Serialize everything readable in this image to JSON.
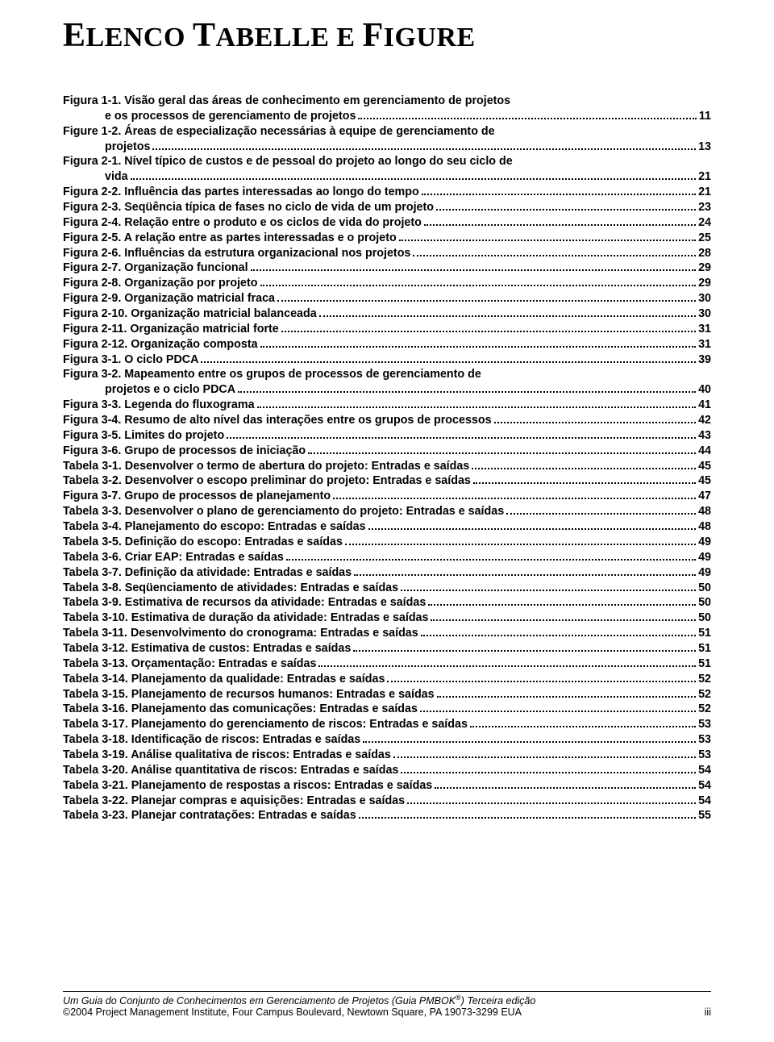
{
  "title_parts": {
    "e_cap": "E",
    "lenco": "LENCO ",
    "t_cap": "T",
    "abelle": "ABELLE E ",
    "f_cap": "F",
    "igure": "IGURE"
  },
  "entries": [
    {
      "label": "Figura 1-1. Visão geral das áreas de conhecimento em gerenciamento de projetos",
      "page": "",
      "hasLeader": false,
      "indent": false
    },
    {
      "label": "e os processos de gerenciamento de projetos",
      "page": "11",
      "hasLeader": true,
      "indent": true
    },
    {
      "label": "Figure 1-2. Áreas de especialização necessárias à equipe de gerenciamento de",
      "page": "",
      "hasLeader": false,
      "indent": false
    },
    {
      "label": "projetos",
      "page": "13",
      "hasLeader": true,
      "indent": true
    },
    {
      "label": "Figura 2-1. Nível típico de custos e de pessoal do projeto ao longo do seu ciclo de",
      "page": "",
      "hasLeader": false,
      "indent": false
    },
    {
      "label": "vida",
      "page": "21",
      "hasLeader": true,
      "indent": true
    },
    {
      "label": "Figura 2-2. Influência das partes interessadas ao longo do tempo",
      "page": "21",
      "hasLeader": true,
      "indent": false
    },
    {
      "label": "Figura 2-3. Seqüência típica de fases no ciclo de vida de um projeto",
      "page": "23",
      "hasLeader": true,
      "indent": false
    },
    {
      "label": "Figura 2-4. Relação entre o produto e os ciclos de vida do projeto",
      "page": "24",
      "hasLeader": true,
      "indent": false
    },
    {
      "label": "Figura 2-5. A relação entre as partes interessadas e o projeto",
      "page": "25",
      "hasLeader": true,
      "indent": false
    },
    {
      "label": "Figura 2-6. Influências da estrutura organizacional nos projetos",
      "page": "28",
      "hasLeader": true,
      "indent": false
    },
    {
      "label": "Figura 2-7. Organização funcional",
      "page": "29",
      "hasLeader": true,
      "indent": false
    },
    {
      "label": "Figura 2-8. Organização por projeto",
      "page": "29",
      "hasLeader": true,
      "indent": false
    },
    {
      "label": "Figura 2-9. Organização matricial fraca",
      "page": "30",
      "hasLeader": true,
      "indent": false
    },
    {
      "label": "Figura 2-10. Organização matricial balanceada",
      "page": "30",
      "hasLeader": true,
      "indent": false
    },
    {
      "label": "Figura 2-11. Organização matricial forte",
      "page": "31",
      "hasLeader": true,
      "indent": false
    },
    {
      "label": "Figura 2-12. Organização composta",
      "page": "31",
      "hasLeader": true,
      "indent": false
    },
    {
      "label": "Figura 3-1. O ciclo PDCA",
      "page": "39",
      "hasLeader": true,
      "indent": false
    },
    {
      "label": "Figura 3-2. Mapeamento entre os grupos de processos de gerenciamento de",
      "page": "",
      "hasLeader": false,
      "indent": false
    },
    {
      "label": "projetos e o ciclo PDCA",
      "page": "40",
      "hasLeader": true,
      "indent": true
    },
    {
      "label": "Figura 3-3. Legenda do fluxograma",
      "page": "41",
      "hasLeader": true,
      "indent": false
    },
    {
      "label": "Figura 3-4. Resumo de alto nível das interações entre os grupos de processos",
      "page": "42",
      "hasLeader": true,
      "indent": false
    },
    {
      "label": "Figura 3-5. Limites do projeto",
      "page": "43",
      "hasLeader": true,
      "indent": false
    },
    {
      "label": "Figura 3-6. Grupo de processos de iniciação",
      "page": "44",
      "hasLeader": true,
      "indent": false
    },
    {
      "label": "Tabela 3-1. Desenvolver o termo de abertura do projeto: Entradas e saídas",
      "page": "45",
      "hasLeader": true,
      "indent": false
    },
    {
      "label": "Tabela 3-2. Desenvolver o escopo preliminar do projeto: Entradas e saídas",
      "page": "45",
      "hasLeader": true,
      "indent": false
    },
    {
      "label": "Figura 3-7. Grupo de processos de planejamento",
      "page": "47",
      "hasLeader": true,
      "indent": false
    },
    {
      "label": "Tabela 3-3. Desenvolver o plano de gerenciamento do projeto: Entradas e saídas",
      "page": "48",
      "hasLeader": true,
      "indent": false
    },
    {
      "label": "Tabela 3-4. Planejamento do escopo: Entradas e saídas",
      "page": "48",
      "hasLeader": true,
      "indent": false
    },
    {
      "label": "Tabela 3-5. Definição do escopo: Entradas e saídas",
      "page": "49",
      "hasLeader": true,
      "indent": false
    },
    {
      "label": "Tabela 3-6. Criar EAP: Entradas e saídas",
      "page": "49",
      "hasLeader": true,
      "indent": false
    },
    {
      "label": "Tabela 3-7. Definição da atividade: Entradas e saídas",
      "page": "49",
      "hasLeader": true,
      "indent": false
    },
    {
      "label": "Tabela 3-8. Seqüenciamento de atividades: Entradas e saídas",
      "page": "50",
      "hasLeader": true,
      "indent": false
    },
    {
      "label": "Tabela 3-9. Estimativa de recursos da atividade: Entradas e saídas",
      "page": "50",
      "hasLeader": true,
      "indent": false
    },
    {
      "label": "Tabela 3-10. Estimativa de duração da atividade: Entradas e saídas",
      "page": "50",
      "hasLeader": true,
      "indent": false
    },
    {
      "label": "Tabela 3-11. Desenvolvimento do cronograma: Entradas e saídas",
      "page": "51",
      "hasLeader": true,
      "indent": false
    },
    {
      "label": "Tabela 3-12. Estimativa de custos: Entradas e saídas",
      "page": "51",
      "hasLeader": true,
      "indent": false
    },
    {
      "label": "Tabela 3-13. Orçamentação: Entradas e saídas",
      "page": "51",
      "hasLeader": true,
      "indent": false
    },
    {
      "label": "Tabela 3-14. Planejamento da qualidade: Entradas e saídas",
      "page": "52",
      "hasLeader": true,
      "indent": false
    },
    {
      "label": "Tabela 3-15. Planejamento de recursos humanos: Entradas e saídas",
      "page": "52",
      "hasLeader": true,
      "indent": false
    },
    {
      "label": "Tabela 3-16. Planejamento das comunicações: Entradas e saídas",
      "page": "52",
      "hasLeader": true,
      "indent": false
    },
    {
      "label": "Tabela 3-17. Planejamento do gerenciamento de riscos: Entradas e saídas",
      "page": "53",
      "hasLeader": true,
      "indent": false
    },
    {
      "label": "Tabela 3-18. Identificação de riscos: Entradas e saídas",
      "page": "53",
      "hasLeader": true,
      "indent": false
    },
    {
      "label": "Tabela 3-19. Análise qualitativa de riscos: Entradas e saídas",
      "page": "53",
      "hasLeader": true,
      "indent": false
    },
    {
      "label": "Tabela 3-20. Análise quantitativa de riscos: Entradas e saídas",
      "page": "54",
      "hasLeader": true,
      "indent": false
    },
    {
      "label": "Tabela 3-21. Planejamento de respostas a riscos: Entradas e saídas",
      "page": "54",
      "hasLeader": true,
      "indent": false
    },
    {
      "label": "Tabela 3-22. Planejar compras e aquisições: Entradas e saídas",
      "page": "54",
      "hasLeader": true,
      "indent": false
    },
    {
      "label": "Tabela 3-23. Planejar contratações: Entradas e saídas",
      "page": "55",
      "hasLeader": true,
      "indent": false
    }
  ],
  "footer": {
    "line1_prefix": "Um Guia do Conjunto de Conhecimentos em Gerenciamento de Projetos (Guia PMBOK",
    "line1_sup": "®",
    "line1_suffix": ") Terceira edição",
    "line2": "©2004 Project Management Institute, Four Campus Boulevard, Newtown Square, PA 19073-3299 EUA",
    "pagenum": "iii"
  }
}
